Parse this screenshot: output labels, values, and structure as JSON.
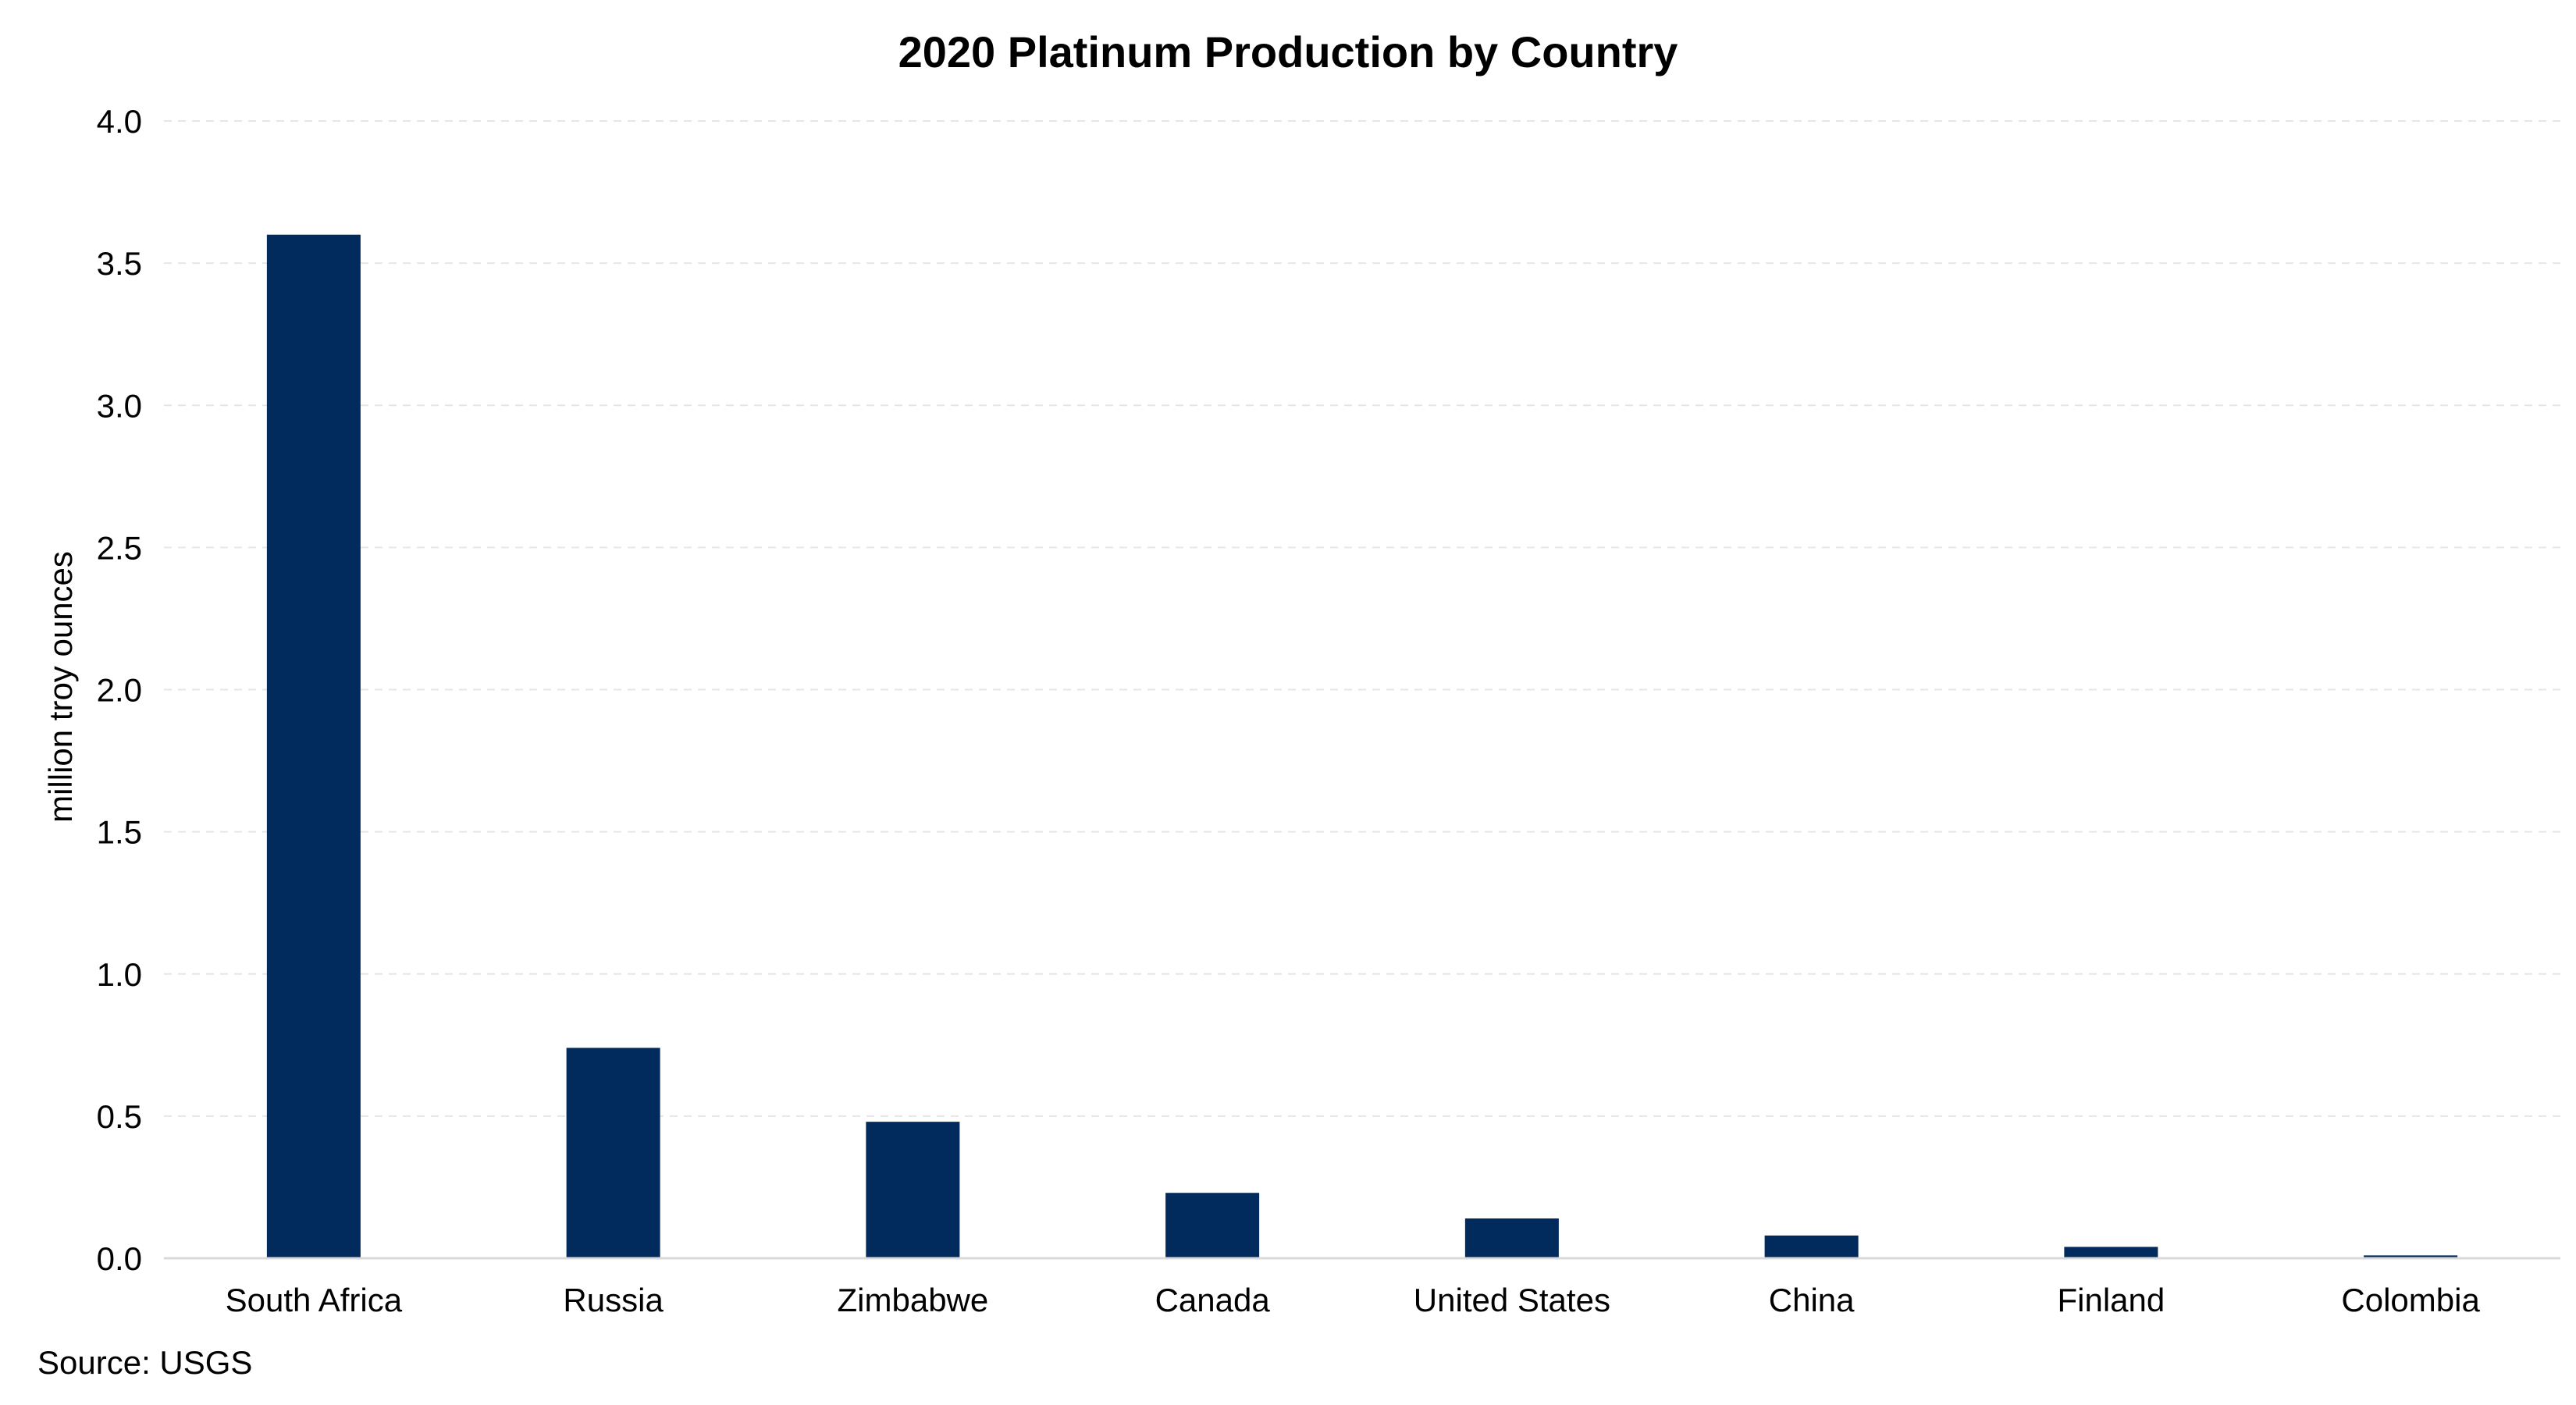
{
  "chart_data": {
    "type": "bar",
    "title": "2020 Platinum Production by Country",
    "ylabel": "million troy ounces",
    "xlabel": "",
    "categories": [
      "South Africa",
      "Russia",
      "Zimbabwe",
      "Canada",
      "United States",
      "China",
      "Finland",
      "Colombia"
    ],
    "values": [
      3.6,
      0.74,
      0.48,
      0.23,
      0.14,
      0.08,
      0.04,
      0.01
    ],
    "ylim": [
      0,
      4.0
    ],
    "yticks": [
      "0.0",
      "0.5",
      "1.0",
      "1.5",
      "2.0",
      "2.5",
      "3.0",
      "3.5",
      "4.0"
    ],
    "grid": true,
    "legend": "none",
    "bar_color": "#002b5c",
    "grid_color": "#e6e6e6",
    "axis_color": "#d9d9d9"
  },
  "footer": {
    "source": "Source: USGS"
  }
}
